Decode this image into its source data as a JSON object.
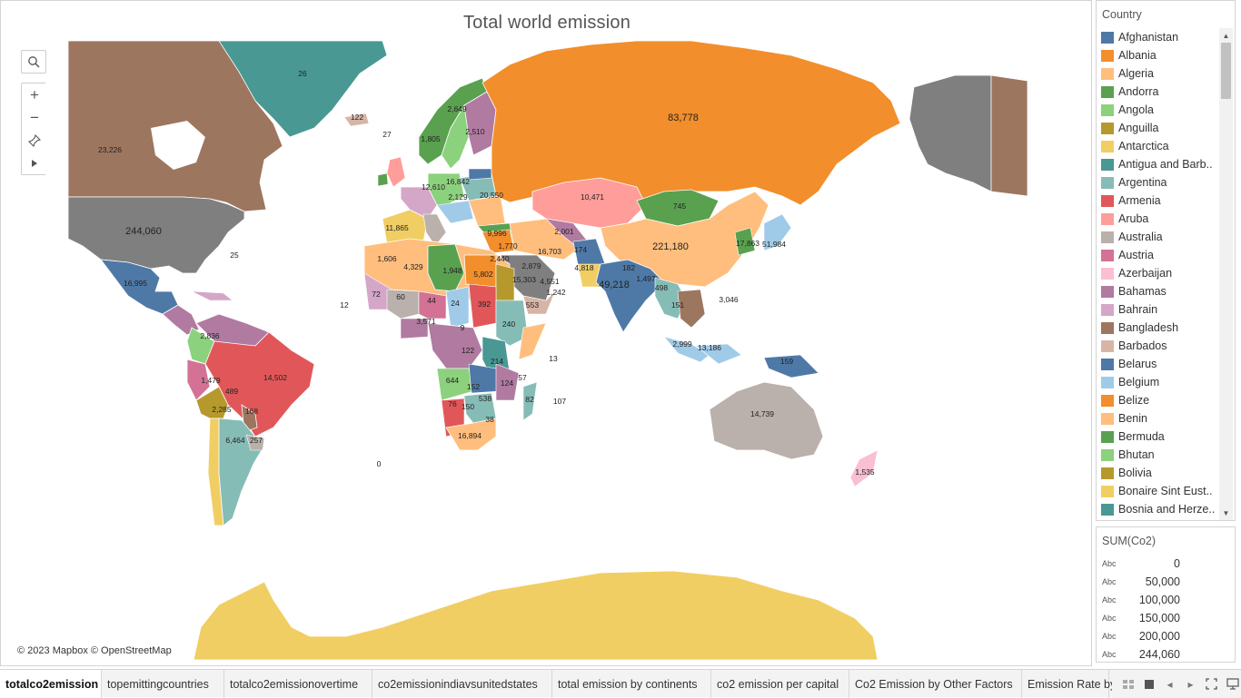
{
  "title": "Total world emission",
  "attribution": "© 2023 Mapbox © OpenStreetMap",
  "legend": {
    "title": "Country",
    "items": [
      {
        "label": "Afghanistan",
        "color": "#4e79a7"
      },
      {
        "label": "Albania",
        "color": "#f28e2b"
      },
      {
        "label": "Algeria",
        "color": "#ffbe7d"
      },
      {
        "label": "Andorra",
        "color": "#59a14f"
      },
      {
        "label": "Angola",
        "color": "#8cd17d"
      },
      {
        "label": "Anguilla",
        "color": "#b6992d"
      },
      {
        "label": "Antarctica",
        "color": "#f1ce63"
      },
      {
        "label": "Antigua and Barb..",
        "color": "#499894"
      },
      {
        "label": "Argentina",
        "color": "#86bcb6"
      },
      {
        "label": "Armenia",
        "color": "#e15759"
      },
      {
        "label": "Aruba",
        "color": "#ff9d9a"
      },
      {
        "label": "Australia",
        "color": "#bab0ac"
      },
      {
        "label": "Austria",
        "color": "#d37295"
      },
      {
        "label": "Azerbaijan",
        "color": "#fabfd2"
      },
      {
        "label": "Bahamas",
        "color": "#b07aa1"
      },
      {
        "label": "Bahrain",
        "color": "#d4a6c8"
      },
      {
        "label": "Bangladesh",
        "color": "#9d7660"
      },
      {
        "label": "Barbados",
        "color": "#d7b5a6"
      },
      {
        "label": "Belarus",
        "color": "#4e79a7"
      },
      {
        "label": "Belgium",
        "color": "#a0cbe8"
      },
      {
        "label": "Belize",
        "color": "#f28e2b"
      },
      {
        "label": "Benin",
        "color": "#ffbe7d"
      },
      {
        "label": "Bermuda",
        "color": "#59a14f"
      },
      {
        "label": "Bhutan",
        "color": "#8cd17d"
      },
      {
        "label": "Bolivia",
        "color": "#b6992d"
      },
      {
        "label": "Bonaire Sint Eust..",
        "color": "#f1ce63"
      },
      {
        "label": "Bosnia and Herze..",
        "color": "#499894"
      }
    ]
  },
  "sum_legend": {
    "title": "SUM(Co2)",
    "abc": "Abc",
    "values": [
      "0",
      "50,000",
      "100,000",
      "150,000",
      "200,000",
      "244,060"
    ]
  },
  "map_labels": [
    {
      "text": "26"
    },
    {
      "text": "122"
    },
    {
      "text": "27"
    },
    {
      "text": "23,226"
    },
    {
      "text": "244,060"
    },
    {
      "text": "83,778"
    },
    {
      "text": "221,180"
    },
    {
      "text": "745"
    },
    {
      "text": "10,471"
    },
    {
      "text": "49,218"
    },
    {
      "text": "14,739"
    },
    {
      "text": "14,502"
    },
    {
      "text": "16,995"
    },
    {
      "text": "16,894"
    },
    {
      "text": "13,186"
    },
    {
      "text": "6,464"
    },
    {
      "text": "2,649"
    },
    {
      "text": "2,510"
    },
    {
      "text": "1,805"
    },
    {
      "text": "12,610"
    },
    {
      "text": "9,996"
    },
    {
      "text": "15,303"
    },
    {
      "text": "16,703"
    },
    {
      "text": "4,329"
    },
    {
      "text": "1,948"
    },
    {
      "text": "5,802"
    },
    {
      "text": "392"
    },
    {
      "text": "240"
    },
    {
      "text": "11,865"
    },
    {
      "text": "1,606"
    },
    {
      "text": "2,001"
    },
    {
      "text": "4,818"
    },
    {
      "text": "17,863"
    },
    {
      "text": "51,984"
    },
    {
      "text": "3,046"
    },
    {
      "text": "1,535"
    },
    {
      "text": "20,550"
    },
    {
      "text": "2,129"
    },
    {
      "text": "16,842"
    },
    {
      "text": "2,836"
    },
    {
      "text": "1,479"
    },
    {
      "text": "2,285"
    },
    {
      "text": "489"
    },
    {
      "text": "168"
    },
    {
      "text": "257"
    },
    {
      "text": "644"
    },
    {
      "text": "538"
    },
    {
      "text": "150"
    },
    {
      "text": "152"
    },
    {
      "text": "82"
    },
    {
      "text": "124"
    },
    {
      "text": "214"
    },
    {
      "text": "122"
    },
    {
      "text": "44"
    },
    {
      "text": "24"
    },
    {
      "text": "60"
    },
    {
      "text": "72"
    },
    {
      "text": "3,571"
    },
    {
      "text": "1,770"
    },
    {
      "text": "2,440"
    },
    {
      "text": "2,879"
    },
    {
      "text": "4,551"
    },
    {
      "text": "1,242"
    },
    {
      "text": "553"
    },
    {
      "text": "174"
    },
    {
      "text": "1,497"
    },
    {
      "text": "498"
    },
    {
      "text": "151"
    },
    {
      "text": "182"
    },
    {
      "text": "2,999"
    },
    {
      "text": "159"
    },
    {
      "text": "25"
    },
    {
      "text": "13"
    },
    {
      "text": "107"
    },
    {
      "text": "12"
    },
    {
      "text": "0"
    },
    {
      "text": "9"
    },
    {
      "text": "76"
    },
    {
      "text": "38"
    },
    {
      "text": "57"
    }
  ],
  "tabs": [
    {
      "label": "totalco2emission",
      "active": true
    },
    {
      "label": "topemittingcountries",
      "active": false
    },
    {
      "label": "totalco2emissionovertime",
      "active": false
    },
    {
      "label": "co2emissionindiavsunitedstates",
      "active": false
    },
    {
      "label": "total emission by continents",
      "active": false
    },
    {
      "label": "co2 emission per capital",
      "active": false
    },
    {
      "label": "Co2 Emission by Other Factors",
      "active": false
    },
    {
      "label": "Emission Rate by",
      "active": false
    }
  ],
  "icons": {
    "search": "search-icon",
    "zoom_in": "zoom-in-icon",
    "zoom_out": "zoom-out-icon",
    "pin": "pin-icon",
    "play": "play-icon"
  },
  "colors": {
    "ocean": "#ffffff",
    "border": "#ffffff"
  }
}
